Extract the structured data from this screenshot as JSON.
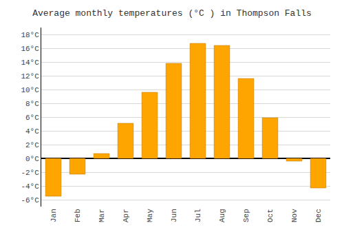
{
  "chart_data": {
    "type": "bar",
    "title": "Average monthly temperatures (°C ) in Thompson Falls",
    "categories": [
      "Jan",
      "Feb",
      "Mar",
      "Apr",
      "May",
      "Jun",
      "Jul",
      "Aug",
      "Sep",
      "Oct",
      "Nov",
      "Dec"
    ],
    "values": [
      -5.5,
      -2.3,
      0.7,
      5.1,
      9.6,
      13.8,
      16.7,
      16.4,
      11.6,
      5.9,
      -0.4,
      -4.3
    ],
    "color": "#FFA500",
    "ylim": [
      -7,
      19
    ],
    "yticks": [
      {
        "value": -6,
        "label": "-6°C"
      },
      {
        "value": -4,
        "label": "-4°C"
      },
      {
        "value": -2,
        "label": "-2°C"
      },
      {
        "value": 0,
        "label": "0°C"
      },
      {
        "value": 2,
        "label": "2°C"
      },
      {
        "value": 4,
        "label": "4°C"
      },
      {
        "value": 6,
        "label": "6°C"
      },
      {
        "value": 8,
        "label": "8°C"
      },
      {
        "value": 10,
        "label": "10°C"
      },
      {
        "value": 12,
        "label": "12°C"
      },
      {
        "value": 14,
        "label": "14°C"
      },
      {
        "value": 16,
        "label": "16°C"
      },
      {
        "value": 18,
        "label": "18°C"
      }
    ],
    "grid": true
  }
}
